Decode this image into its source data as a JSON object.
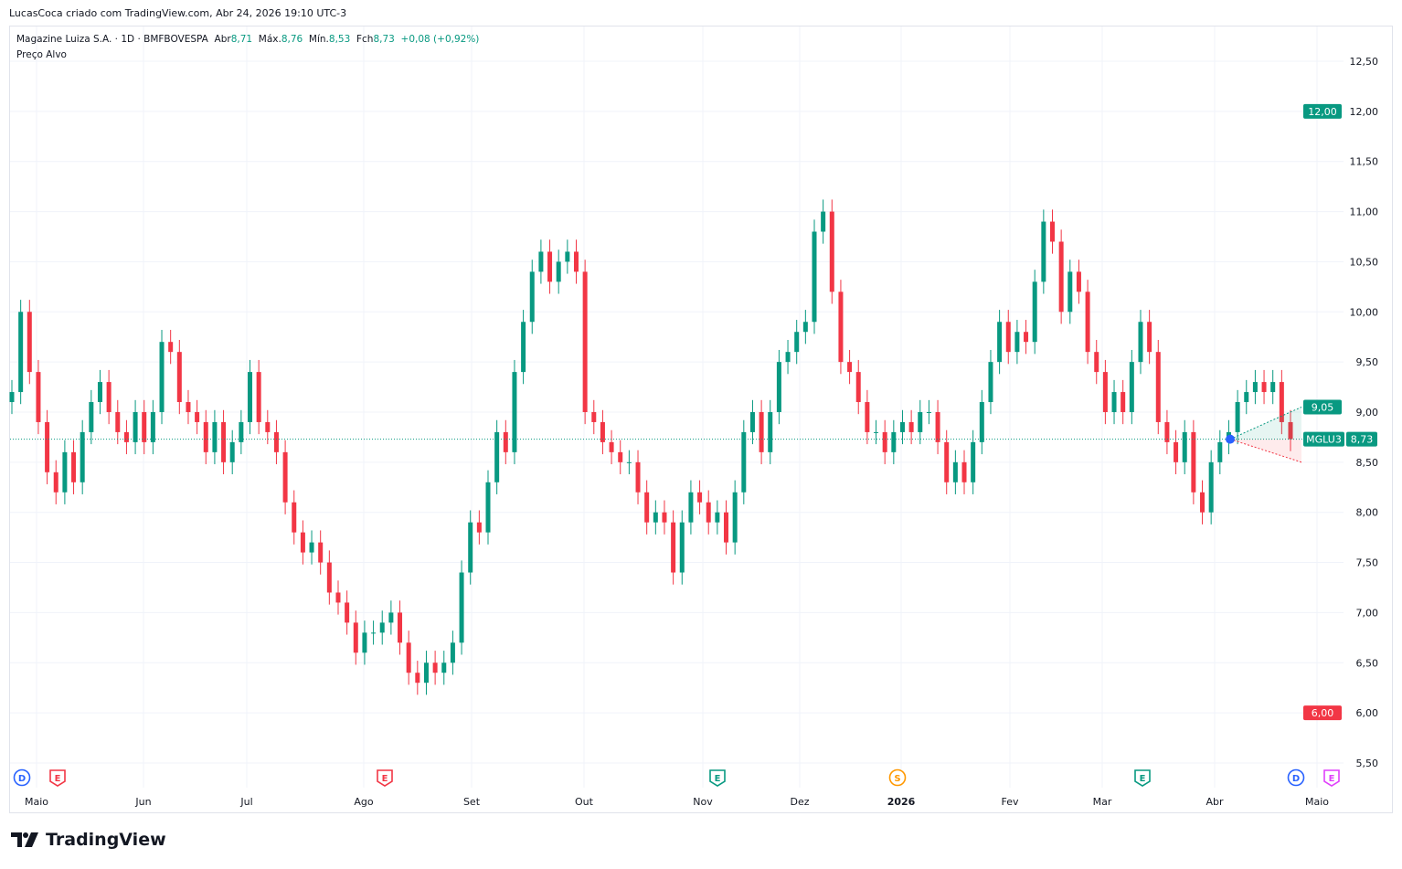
{
  "header": {
    "credit": "LucasCoca criado com TradingView.com, Abr 24, 2026 19:10 UTC-3"
  },
  "legend": {
    "symbol": "Magazine Luiza S.A. · 1D · BMFBOVESPA",
    "open_label": "Abr",
    "open": "8,71",
    "high_label": "Máx.",
    "high": "8,76",
    "low_label": "Mín.",
    "low": "8,53",
    "close_label": "Fch",
    "close": "8,73",
    "change": "+0,08 (+0,92%)",
    "indicator": "Preço Alvo"
  },
  "footer": {
    "brand": "TradingView"
  },
  "colors": {
    "up": "#089981",
    "down": "#f23645",
    "grid": "#f0f3fa",
    "target": "#089981",
    "low_target": "#f23645",
    "marker_dividend": "#2962ff",
    "marker_earnings_red": "#f23645",
    "marker_earnings_green": "#089981",
    "marker_split": "#ff9800",
    "marker_earnings_purple": "#e040fb"
  },
  "chart_data": {
    "type": "candlestick",
    "ticker": "MGLU3",
    "ylim": [
      5.3,
      12.7
    ],
    "y_ticks": [
      "12,50",
      "12,00",
      "11,50",
      "11,00",
      "10,50",
      "10,00",
      "9,50",
      "9,00",
      "8,50",
      "8,00",
      "7,50",
      "7,00",
      "6,50",
      "6,00",
      "5,50"
    ],
    "x_ticks": [
      "Maio",
      "Jun",
      "Jul",
      "Ago",
      "Set",
      "Out",
      "Nov",
      "Dez",
      "2026",
      "Fev",
      "Mar",
      "Abr",
      "Maio"
    ],
    "closes": [
      9.2,
      10.0,
      9.4,
      8.9,
      8.4,
      8.2,
      8.6,
      8.3,
      8.8,
      9.1,
      9.3,
      9.0,
      8.8,
      8.7,
      9.0,
      8.7,
      9.0,
      9.7,
      9.6,
      9.1,
      9.0,
      8.9,
      8.6,
      8.9,
      8.5,
      8.7,
      8.9,
      9.4,
      8.9,
      8.8,
      8.6,
      8.1,
      7.8,
      7.6,
      7.7,
      7.5,
      7.2,
      7.1,
      6.9,
      6.6,
      6.8,
      6.8,
      6.9,
      7.0,
      6.7,
      6.4,
      6.3,
      6.5,
      6.4,
      6.5,
      6.7,
      7.4,
      7.9,
      7.8,
      8.3,
      8.8,
      8.6,
      9.4,
      9.9,
      10.4,
      10.6,
      10.3,
      10.5,
      10.6,
      10.4,
      9.0,
      8.9,
      8.7,
      8.6,
      8.5,
      8.5,
      8.2,
      7.9,
      8.0,
      7.9,
      7.4,
      7.9,
      8.2,
      8.1,
      7.9,
      8.0,
      7.7,
      8.2,
      8.8,
      9.0,
      8.6,
      9.0,
      9.5,
      9.6,
      9.8,
      9.9,
      10.8,
      11.0,
      10.2,
      9.5,
      9.4,
      9.1,
      8.8,
      8.8,
      8.6,
      8.8,
      8.9,
      8.8,
      9.0,
      9.0,
      8.7,
      8.3,
      8.5,
      8.3,
      8.7,
      9.1,
      9.5,
      9.9,
      9.6,
      9.8,
      9.7,
      10.3,
      10.9,
      10.7,
      10.0,
      10.4,
      10.2,
      9.6,
      9.4,
      9.0,
      9.2,
      9.0,
      9.5,
      9.9,
      9.6,
      8.9,
      8.7,
      8.5,
      8.8,
      8.2,
      8.0,
      8.5,
      8.7,
      8.8,
      9.1,
      9.2,
      9.3,
      9.2,
      9.3,
      8.9,
      8.73
    ],
    "last_price": 8.73,
    "price_target": {
      "high": "12,00",
      "average": "9,05",
      "low": "6,00",
      "low_projection": "8,50",
      "average_value": 9.05,
      "low_projection_value": 8.5,
      "high_value": 12.0,
      "low_value": 6.0
    },
    "events": [
      {
        "type": "D",
        "color": "#2962ff"
      },
      {
        "type": "E",
        "color": "#f23645"
      },
      {
        "type": "E",
        "color": "#f23645"
      },
      {
        "type": "E",
        "color": "#089981"
      },
      {
        "type": "S",
        "color": "#ff9800"
      },
      {
        "type": "E",
        "color": "#089981"
      },
      {
        "type": "D",
        "color": "#2962ff"
      },
      {
        "type": "E",
        "color": "#e040fb"
      }
    ]
  }
}
